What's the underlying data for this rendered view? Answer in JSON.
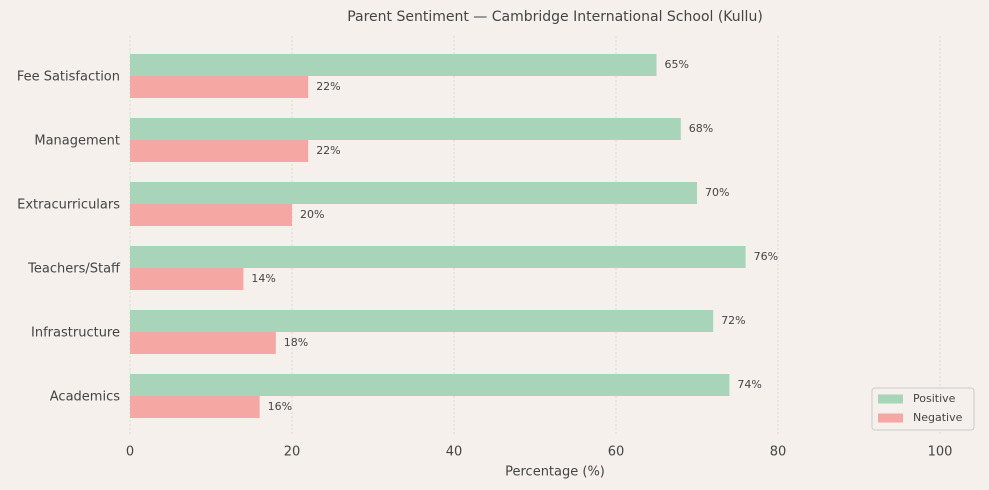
{
  "chart_data": {
    "type": "hbar-grouped",
    "title": "Parent Sentiment — Cambridge International School (Kullu)",
    "xlabel": "Percentage (%)",
    "categories": [
      "Fee Satisfaction",
      "Management",
      "Extracurriculars",
      "Teachers/Staff",
      "Infrastructure",
      "Academics"
    ],
    "series": [
      {
        "name": "Positive",
        "color": "#a8d5ba",
        "values": [
          65,
          68,
          70,
          76,
          72,
          74
        ],
        "value_labels": [
          "65%",
          "68%",
          "70%",
          "76%",
          "72%",
          "74%"
        ]
      },
      {
        "name": "Negative",
        "color": "#f4a7a3",
        "values": [
          22,
          22,
          20,
          14,
          18,
          16
        ],
        "value_labels": [
          "22%",
          "22%",
          "20%",
          "14%",
          "18%",
          "16%"
        ]
      }
    ],
    "xlim": [
      0,
      105
    ],
    "xticks": [
      0,
      20,
      40,
      60,
      80,
      100
    ],
    "grid": true,
    "legend": "lower right"
  }
}
